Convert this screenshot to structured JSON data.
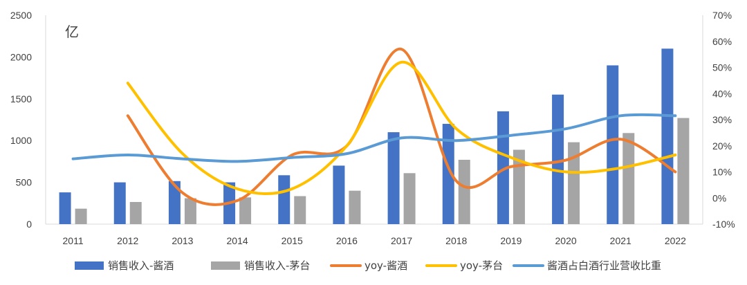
{
  "chart_data": {
    "type": "bar",
    "categories": [
      "2011",
      "2012",
      "2013",
      "2014",
      "2015",
      "2016",
      "2017",
      "2018",
      "2019",
      "2020",
      "2021",
      "2022"
    ],
    "unit_label": "亿",
    "y_left": {
      "min": 0,
      "max": 2500,
      "step": 500,
      "ticks": [
        "0",
        "500",
        "1000",
        "1500",
        "2000",
        "2500"
      ]
    },
    "y_right": {
      "min": -10,
      "max": 70,
      "step": 10,
      "ticks": [
        "-10%",
        "0%",
        "10%",
        "20%",
        "30%",
        "40%",
        "50%",
        "60%",
        "70%"
      ]
    },
    "grid": false,
    "legend_position": "bottom",
    "series": [
      {
        "name": "销售收入-酱酒",
        "kind": "bar",
        "axis": "left",
        "color": "#4472C4",
        "values": [
          380,
          500,
          515,
          500,
          585,
          700,
          1100,
          1200,
          1350,
          1550,
          1900,
          2100
        ]
      },
      {
        "name": "销售收入-茅台",
        "kind": "bar",
        "axis": "left",
        "color": "#A5A5A5",
        "values": [
          185,
          265,
          310,
          320,
          335,
          400,
          610,
          770,
          890,
          980,
          1090,
          1270
        ]
      },
      {
        "name": "yoy-酱酒",
        "kind": "line",
        "axis": "right",
        "color": "#ED7D31",
        "values": [
          null,
          31.5,
          2.0,
          -1.0,
          16.5,
          20.0,
          57.0,
          6.5,
          12.0,
          14.5,
          22.5,
          10.0
        ]
      },
      {
        "name": "yoy-茅台",
        "kind": "line",
        "axis": "right",
        "color": "#FFC000",
        "values": [
          null,
          44.0,
          17.0,
          3.5,
          3.5,
          20.0,
          52.0,
          26.5,
          15.5,
          10.0,
          11.5,
          16.5
        ]
      },
      {
        "name": "酱酒占白酒行业营收比重",
        "kind": "line",
        "axis": "right",
        "color": "#5B9BD5",
        "values": [
          15.0,
          16.5,
          15.0,
          14.0,
          15.5,
          17.0,
          23.0,
          22.0,
          24.0,
          26.5,
          31.5,
          31.5
        ]
      }
    ]
  }
}
